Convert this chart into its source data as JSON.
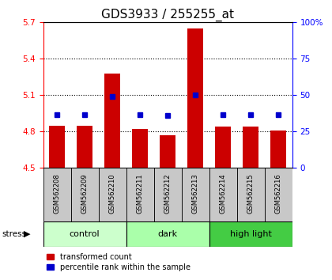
{
  "title": "GDS3933 / 255255_at",
  "samples": [
    "GSM562208",
    "GSM562209",
    "GSM562210",
    "GSM562211",
    "GSM562212",
    "GSM562213",
    "GSM562214",
    "GSM562215",
    "GSM562216"
  ],
  "red_values": [
    4.85,
    4.85,
    5.28,
    4.82,
    4.77,
    5.65,
    4.84,
    4.84,
    4.81
  ],
  "blue_values": [
    4.94,
    4.94,
    5.09,
    4.94,
    4.93,
    5.1,
    4.94,
    4.94,
    4.94
  ],
  "ylim_left": [
    4.5,
    5.7
  ],
  "ylim_right": [
    0,
    100
  ],
  "yticks_left": [
    4.5,
    4.8,
    5.1,
    5.4,
    5.7
  ],
  "yticks_right": [
    0,
    25,
    50,
    75,
    100
  ],
  "ytick_labels_right": [
    "0",
    "25",
    "50",
    "75",
    "100%"
  ],
  "grid_vals": [
    4.8,
    5.1,
    5.4
  ],
  "groups": [
    {
      "label": "control",
      "indices": [
        0,
        1,
        2
      ],
      "color": "#ccffcc"
    },
    {
      "label": "dark",
      "indices": [
        3,
        4,
        5
      ],
      "color": "#aaffaa"
    },
    {
      "label": "high light",
      "indices": [
        6,
        7,
        8
      ],
      "color": "#44cc44"
    }
  ],
  "bar_bottom": 4.5,
  "bar_color": "#cc0000",
  "dot_color": "#0000cc",
  "label_bg_color": "#c8c8c8",
  "legend_red_label": "transformed count",
  "legend_blue_label": "percentile rank within the sample",
  "stress_label": "stress",
  "title_fontsize": 11,
  "tick_fontsize": 7.5,
  "bar_width": 0.55
}
